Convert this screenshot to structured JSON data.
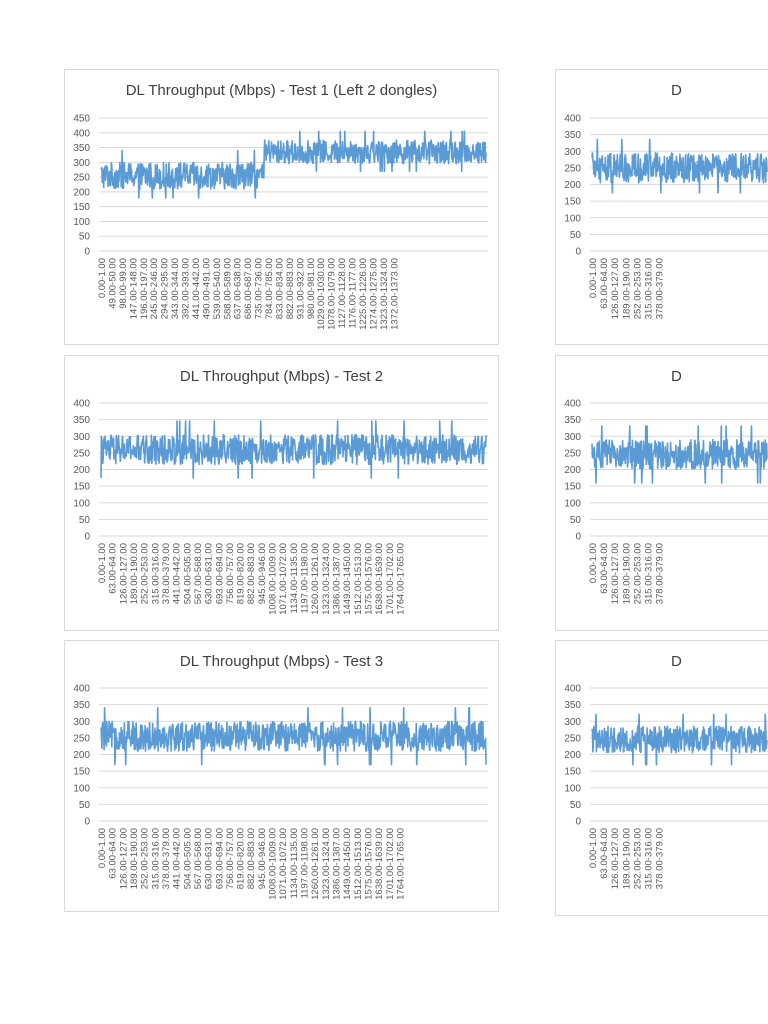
{
  "chart_data": [
    {
      "type": "line",
      "title": "DL Throughput (Mbps) - Test 1 (Left 2 dongles)",
      "xlabel": "",
      "ylabel": "",
      "ylim": [
        0,
        450
      ],
      "yticks": [
        0,
        50,
        100,
        150,
        200,
        250,
        300,
        350,
        400,
        450
      ],
      "grid": true,
      "legend": "none",
      "categories": [
        "0.00-1.00",
        "49.00-50.00",
        "98.00-99.00",
        "147.00-148.00",
        "196.00-197.00",
        "245.00-246.00",
        "294.00-295.00",
        "343.00-344.00",
        "392.00-393.00",
        "441.00-442.00",
        "490.00-491.00",
        "539.00-540.00",
        "588.00-589.00",
        "637.00-638.00",
        "686.00-687.00",
        "735.00-736.00",
        "784.00-785.00",
        "833.00-834.00",
        "882.00-883.00",
        "931.00-932.00",
        "980.00-981.00",
        "1029.00-1030.00",
        "1078.00-1079.00",
        "1127.00-1128.00",
        "1176.00-1177.00",
        "1225.00-1226.00",
        "1274.00-1275.00",
        "1323.00-1324.00",
        "1372.00-1373.00"
      ],
      "series": [
        {
          "segments": [
            {
              "from": 0,
              "to": 590,
              "center": 255,
              "amp": 45,
              "max": 345,
              "min": 180
            },
            {
              "from": 590,
              "to": 1390,
              "center": 335,
              "amp": 40,
              "max": 405,
              "min": 270
            }
          ]
        }
      ]
    },
    {
      "type": "line",
      "title": "DL Throughput (Mbps) - Test 2",
      "xlabel": "",
      "ylabel": "",
      "ylim": [
        0,
        400
      ],
      "yticks": [
        0,
        50,
        100,
        150,
        200,
        250,
        300,
        350,
        400
      ],
      "grid": true,
      "legend": "none",
      "categories": [
        "0.00-1.00",
        "63.00-64.00",
        "126.00-127.00",
        "189.00-190.00",
        "252.00-253.00",
        "315.00-316.00",
        "378.00-379.00",
        "441.00-442.00",
        "504.00-505.00",
        "567.00-568.00",
        "630.00-631.00",
        "693.00-694.00",
        "756.00-757.00",
        "819.00-820.00",
        "882.00-883.00",
        "945.00-946.00",
        "1008.00-1009.00",
        "1071.00-1072.00",
        "1134.00-1135.00",
        "1197.00-1198.00",
        "1260.00-1261.00",
        "1323.00-1324.00",
        "1386.00-1387.00",
        "1449.00-1450.00",
        "1512.00-1513.00",
        "1575.00-1576.00",
        "1638.00-1639.00",
        "1701.00-1702.00",
        "1764.00-1765.00"
      ],
      "series": [
        {
          "segments": [
            {
              "from": 0,
              "to": 1790,
              "center": 260,
              "amp": 45,
              "max": 360,
              "min": 150
            }
          ]
        }
      ]
    },
    {
      "type": "line",
      "title": "DL Throughput (Mbps) - Test 3",
      "xlabel": "",
      "ylabel": "",
      "ylim": [
        0,
        400
      ],
      "yticks": [
        0,
        50,
        100,
        150,
        200,
        250,
        300,
        350,
        400
      ],
      "grid": true,
      "legend": "none",
      "categories": [
        "0.00-1.00",
        "63.00-64.00",
        "126.00-127.00",
        "189.00-190.00",
        "252.00-253.00",
        "315.00-316.00",
        "378.00-379.00",
        "441.00-442.00",
        "504.00-505.00",
        "567.00-568.00",
        "630.00-631.00",
        "693.00-694.00",
        "756.00-757.00",
        "819.00-820.00",
        "882.00-883.00",
        "945.00-946.00",
        "1008.00-1009.00",
        "1071.00-1072.00",
        "1134.00-1135.00",
        "1197.00-1198.00",
        "1260.00-1261.00",
        "1323.00-1324.00",
        "1386.00-1387.00",
        "1449.00-1450.00",
        "1512.00-1513.00",
        "1575.00-1576.00",
        "1638.00-1639.00",
        "1701.00-1702.00",
        "1764.00-1765.00"
      ],
      "series": [
        {
          "segments": [
            {
              "from": 0,
              "to": 1790,
              "center": 255,
              "amp": 45,
              "max": 365,
              "min": 155
            }
          ]
        }
      ]
    },
    {
      "type": "line",
      "title": "D",
      "xlabel": "",
      "ylabel": "",
      "ylim": [
        0,
        400
      ],
      "yticks": [
        0,
        50,
        100,
        150,
        200,
        250,
        300,
        350,
        400
      ],
      "grid": true,
      "legend": "none",
      "categories": [
        "0.00-1.00",
        "63.00-64.00",
        "126.00-127.00",
        "189.00-190.00",
        "252.00-253.00",
        "315.00-316.00",
        "378.00-379.00"
      ],
      "series": [
        {
          "segments": [
            {
              "from": 0,
              "to": 400,
              "center": 250,
              "amp": 45,
              "max": 370,
              "min": 175
            }
          ]
        }
      ]
    },
    {
      "type": "line",
      "title": "D",
      "xlabel": "",
      "ylabel": "",
      "ylim": [
        0,
        400
      ],
      "yticks": [
        0,
        50,
        100,
        150,
        200,
        250,
        300,
        350,
        400
      ],
      "grid": true,
      "legend": "none",
      "categories": [
        "0.00-1.00",
        "63.00-64.00",
        "126.00-127.00",
        "189.00-190.00",
        "252.00-253.00",
        "315.00-316.00",
        "378.00-379.00"
      ],
      "series": [
        {
          "segments": [
            {
              "from": 0,
              "to": 400,
              "center": 245,
              "amp": 45,
              "max": 360,
              "min": 150
            }
          ]
        }
      ]
    },
    {
      "type": "line",
      "title": "D",
      "xlabel": "",
      "ylabel": "",
      "ylim": [
        0,
        400
      ],
      "yticks": [
        0,
        50,
        100,
        150,
        200,
        250,
        300,
        350,
        400
      ],
      "grid": true,
      "legend": "none",
      "categories": [
        "0.00-1.00",
        "63.00-64.00",
        "126.00-127.00",
        "189.00-190.00",
        "252.00-253.00",
        "315.00-316.00",
        "378.00-379.00"
      ],
      "series": [
        {
          "segments": [
            {
              "from": 0,
              "to": 400,
              "center": 245,
              "amp": 40,
              "max": 345,
              "min": 165
            }
          ]
        }
      ]
    }
  ],
  "colors": {
    "series": "#5b9bd5",
    "grid": "#d9d9d9",
    "text": "#595959",
    "title": "#404040",
    "border": "#d9d9d9"
  }
}
